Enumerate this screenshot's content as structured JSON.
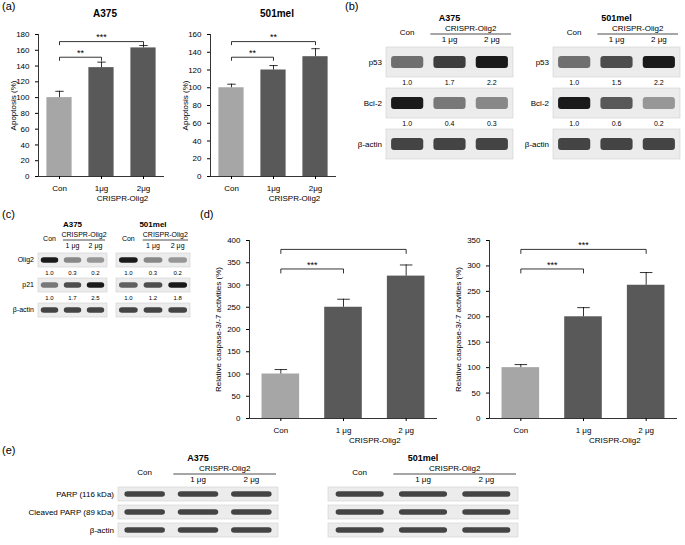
{
  "chart_data": [
    {
      "panel": "(a)",
      "type": "bar",
      "title": "A375",
      "categories": [
        "Con",
        "1μg",
        "2μg"
      ],
      "values": [
        100,
        138,
        163
      ],
      "errors": [
        8,
        7,
        3
      ],
      "colors": [
        "#a6a6a6",
        "#595959",
        "#595959"
      ],
      "group": {
        "label": "CRISPR-Olig2",
        "categories": [
          "1μg",
          "2μg"
        ]
      },
      "ylim": [
        0,
        180
      ],
      "yticks": [
        0,
        20,
        40,
        60,
        80,
        100,
        120,
        140,
        160,
        180
      ],
      "y_label": "Apoptosis (%)",
      "significance": [
        {
          "from": "Con",
          "to": "1μg",
          "label": "**"
        },
        {
          "from": "Con",
          "to": "2μg",
          "label": "***"
        }
      ]
    },
    {
      "type": "bar",
      "title": "501mel",
      "categories": [
        "Con",
        "1μg",
        "2μg"
      ],
      "values": [
        100,
        120,
        135
      ],
      "errors": [
        4,
        5,
        9
      ],
      "colors": [
        "#a6a6a6",
        "#595959",
        "#595959"
      ],
      "group": {
        "label": "CRISPR-Olig2",
        "categories": [
          "1μg",
          "2μg"
        ]
      },
      "ylim": [
        0,
        160
      ],
      "yticks": [
        0,
        20,
        40,
        60,
        80,
        100,
        120,
        140,
        160
      ],
      "y_label": "Apoptosis (%)",
      "significance": [
        {
          "from": "Con",
          "to": "1μg",
          "label": "**"
        },
        {
          "from": "Con",
          "to": "2μg",
          "label": "**"
        }
      ]
    },
    {
      "panel": "(d)",
      "type": "bar",
      "categories": [
        "Con",
        "1 μg",
        "2 μg"
      ],
      "values": [
        100,
        250,
        320
      ],
      "errors": [
        10,
        18,
        25
      ],
      "colors": [
        "#a6a6a6",
        "#595959",
        "#595959"
      ],
      "group": {
        "label": "CRISPR-Olig2",
        "categories": [
          "1 μg",
          "2 μg"
        ]
      },
      "ylim": [
        0,
        400
      ],
      "yticks": [
        0,
        50,
        100,
        150,
        200,
        250,
        300,
        350,
        400
      ],
      "y_label": "Relative caspase-3/-7 activities (%)",
      "significance": [
        {
          "from": "Con",
          "to": "1 μg",
          "label": "***"
        },
        {
          "from": "Con",
          "to": "2 μg"
        }
      ]
    },
    {
      "type": "bar",
      "categories": [
        "Con",
        "1 μg",
        "2 μg"
      ],
      "values": [
        100,
        200,
        262
      ],
      "errors": [
        6,
        18,
        25
      ],
      "colors": [
        "#a6a6a6",
        "#595959",
        "#595959"
      ],
      "group": {
        "label": "CRISPR-Olig2",
        "categories": [
          "1 μg",
          "2 μg"
        ]
      },
      "ylim": [
        0,
        350
      ],
      "yticks": [
        0,
        50,
        100,
        150,
        200,
        250,
        300,
        350
      ],
      "y_label": "Relative caspase-3/-7 activities (%)",
      "significance": [
        {
          "from": "Con",
          "to": "1 μg",
          "label": "***"
        },
        {
          "from": "Con",
          "to": "2 μg",
          "label": "***"
        }
      ]
    }
  ],
  "blots": [
    {
      "panel": "(b)",
      "lanes": [
        "Con",
        "1 μg",
        "2 μg"
      ],
      "group": {
        "label": "CRISPR-Olig2",
        "lanes": [
          "1 μg",
          "2 μg"
        ]
      },
      "cell_lines": [
        {
          "title": "A375",
          "row_labels": [
            "p53",
            "Bcl-2",
            "β-actin"
          ],
          "quantification": [
            {
              "values": [
                1.0,
                1.7,
                2.2
              ],
              "value_labels": [
                "1.0",
                "1.7",
                "2.2"
              ]
            },
            {
              "values": [
                1.0,
                0.4,
                0.3
              ],
              "value_labels": [
                "1.0",
                "0.4",
                "0.3"
              ]
            },
            null
          ]
        },
        {
          "title": "501mel",
          "row_labels": [
            "p53",
            "Bcl-2",
            "β-actin"
          ],
          "quantification": [
            {
              "values": [
                1.0,
                1.5,
                2.2
              ],
              "value_labels": [
                "1.0",
                "1.5",
                "2.2"
              ]
            },
            {
              "values": [
                1.0,
                0.6,
                0.2
              ],
              "value_labels": [
                "1.0",
                "0.6",
                "0.2"
              ]
            },
            null
          ]
        }
      ]
    },
    {
      "panel": "(c)",
      "lanes": [
        "Con",
        "1 μg",
        "2 μg"
      ],
      "group": {
        "label": "CRISPR-Olig2",
        "lanes": [
          "1 μg",
          "2 μg"
        ]
      },
      "row_labels": [
        "Olig2",
        "p21",
        "β-actin"
      ],
      "cell_lines": [
        {
          "title": "A375",
          "quantification": [
            {
              "values": [
                1.0,
                0.3,
                0.2
              ],
              "value_labels": [
                "1.0",
                "0.3",
                "0.2"
              ]
            },
            {
              "values": [
                1.0,
                1.7,
                2.5
              ],
              "value_labels": [
                "1.0",
                "1.7",
                "2.5"
              ]
            },
            null
          ]
        },
        {
          "title": "501mel",
          "quantification": [
            {
              "values": [
                1.0,
                0.3,
                0.2
              ],
              "value_labels": [
                "1.0",
                "0.3",
                "0.2"
              ]
            },
            {
              "values": [
                1.0,
                1.2,
                1.8
              ],
              "value_labels": [
                "1.0",
                "1.2",
                "1.8"
              ]
            },
            null
          ]
        }
      ]
    },
    {
      "panel": "(e)",
      "lanes": [
        "Con",
        "1 μg",
        "2 μg"
      ],
      "group": {
        "label": "CRISPR-Olig2",
        "lanes": [
          "1 μg",
          "2 μg"
        ]
      },
      "row_labels": [
        "PARP (116 kDa)",
        "Cleaved PARP (89 kDa)",
        "β-actin"
      ],
      "cell_lines": [
        {
          "title": "A375"
        },
        {
          "title": "501mel"
        }
      ]
    }
  ]
}
